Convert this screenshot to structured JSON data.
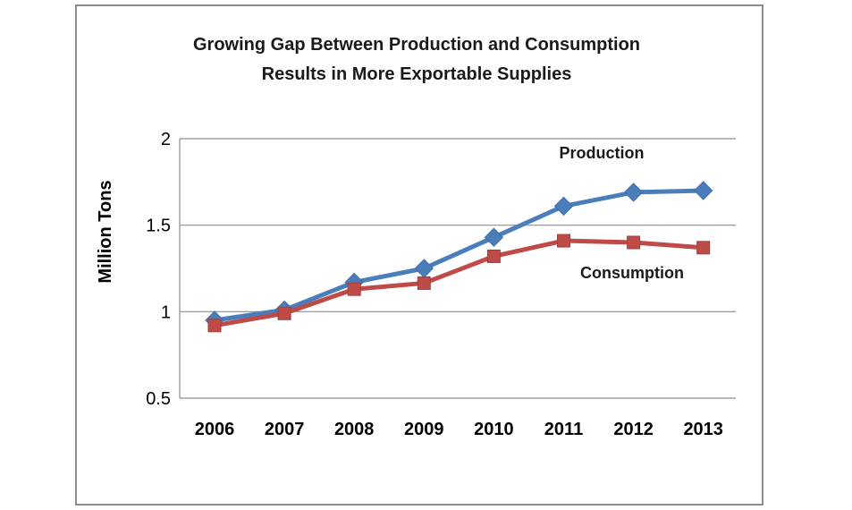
{
  "chart_data": {
    "type": "line",
    "title_lines": [
      "Growing Gap Between Production and Consumption",
      "Results in More Exportable Supplies"
    ],
    "ylabel": "Million Tons",
    "xlabel": "",
    "categories": [
      "2006",
      "2007",
      "2008",
      "2009",
      "2010",
      "2011",
      "2012",
      "2013"
    ],
    "ylim": [
      0.5,
      2
    ],
    "yticks": [
      "0.5",
      "1",
      "1.5",
      "2"
    ],
    "ytick_values": [
      0.5,
      1,
      1.5,
      2
    ],
    "grid": true,
    "legend": "none",
    "series": [
      {
        "name": "Production",
        "values": [
          0.95,
          1.01,
          1.17,
          1.25,
          1.43,
          1.61,
          1.69,
          1.7
        ],
        "color": "#4a7ebb",
        "marker": "diamond"
      },
      {
        "name": "Consumption",
        "values": [
          0.92,
          0.99,
          1.13,
          1.165,
          1.32,
          1.41,
          1.4,
          1.37
        ],
        "color": "#be4b48",
        "marker": "square"
      }
    ]
  }
}
